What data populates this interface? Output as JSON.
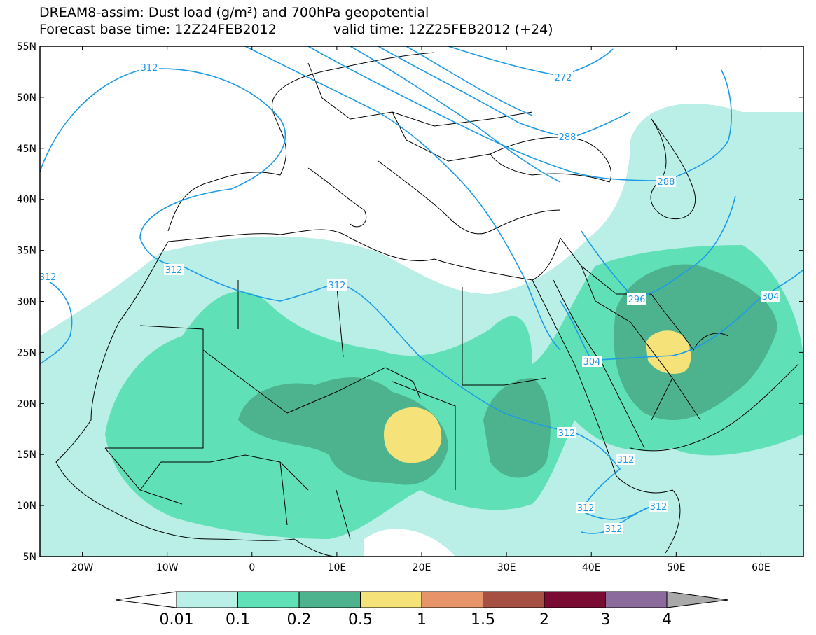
{
  "header": {
    "title": "DREAM8-assim: Dust load (g/m²) and 700hPa geopotential",
    "base_time": "Forecast base time: 12Z24FEB2012",
    "valid_time": "valid time: 12Z25FEB2012 (+24)"
  },
  "map": {
    "lon_range": [
      -25,
      65
    ],
    "lat_range": [
      5,
      55
    ],
    "lat_labels": [
      "55N",
      "50N",
      "45N",
      "40N",
      "35N",
      "30N",
      "25N",
      "20N",
      "15N",
      "10N",
      "5N"
    ],
    "lon_labels": [
      "20W",
      "10W",
      "0",
      "10E",
      "20E",
      "30E",
      "40E",
      "50E",
      "60E"
    ],
    "contour_labels": [
      "312",
      "312",
      "312",
      "312",
      "296",
      "304",
      "304",
      "288",
      "288",
      "272",
      "312",
      "312",
      "312",
      "312",
      "312"
    ],
    "colors": {
      "land_outline": "#000000",
      "contour": "#1e9be6",
      "dust_0_01": "#b9efe6",
      "dust_0_1": "#5fe0b6",
      "dust_0_2": "#4db38e",
      "dust_0_5": "#f5e37a"
    }
  },
  "legend": {
    "labels": [
      "0.01",
      "0.1",
      "0.2",
      "0.5",
      "1",
      "1.5",
      "2",
      "3",
      "4"
    ],
    "colors": [
      "#ffffff",
      "#b9efe6",
      "#5fe0b6",
      "#4db38e",
      "#f5e37a",
      "#e8946a",
      "#a65044",
      "#7a0b32",
      "#8b6b9b",
      "#a9a9a9"
    ]
  }
}
